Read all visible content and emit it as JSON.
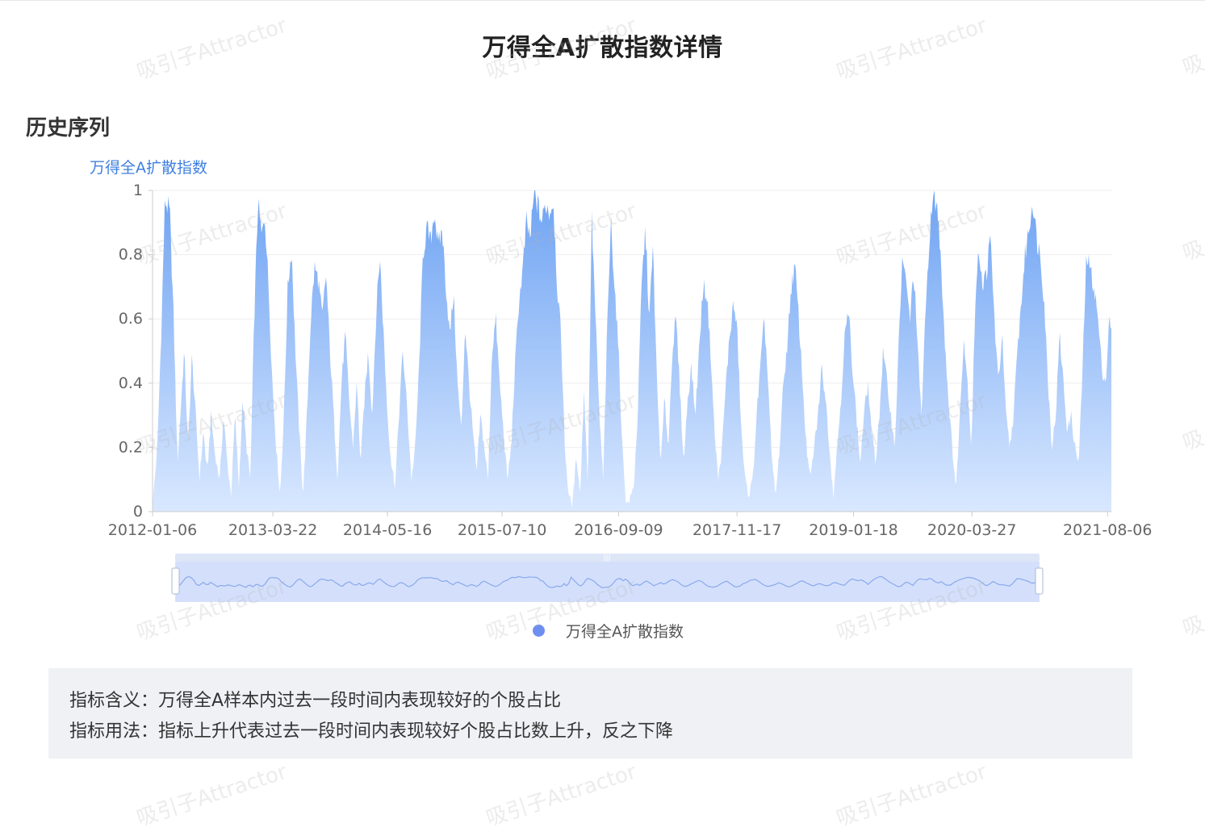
{
  "page": {
    "title": "万得全A扩散指数详情",
    "section_title": "历史序列",
    "watermark_text": "吸引子Attractor",
    "info": {
      "meaning_label": "指标含义：",
      "meaning_text": "万得全A样本内过去一段时间内表现较好的个股占比",
      "usage_label": "指标用法：",
      "usage_text": "指标上升代表过去一段时间内表现较好个股占比数上升，反之下降"
    }
  },
  "colors": {
    "accent": "#3f7fe0",
    "area_top": "#6ea3f3",
    "area_bottom": "#d9e8ff",
    "legend_dot": "#6e8ef0",
    "slider_fill": "#d4e0fb",
    "slider_handle_bar": "#dde6f7"
  },
  "chart_data": {
    "type": "area",
    "series_name": "万得全A扩散指数",
    "legend": [
      "万得全A扩散指数"
    ],
    "legend_position": "bottom-center",
    "x_start": "2012-01-06",
    "x_end": "2021-08-20",
    "x_tick_labels": [
      "2012-01-06",
      "2013-03-22",
      "2014-05-16",
      "2015-07-10",
      "2016-09-09",
      "2017-11-17",
      "2019-01-18",
      "2020-03-27",
      "2021-08-06"
    ],
    "y_ticks": [
      "0",
      "0.2",
      "0.4",
      "0.6",
      "0.8",
      "1"
    ],
    "ylim": [
      0,
      1
    ],
    "grid": true,
    "data_zoom_slider": true,
    "anchors": [
      [
        0.0,
        0.02
      ],
      [
        0.005,
        0.2
      ],
      [
        0.009,
        0.55
      ],
      [
        0.013,
        0.97
      ],
      [
        0.018,
        0.93
      ],
      [
        0.022,
        0.6
      ],
      [
        0.026,
        0.15
      ],
      [
        0.03,
        0.35
      ],
      [
        0.033,
        0.5
      ],
      [
        0.037,
        0.2
      ],
      [
        0.041,
        0.48
      ],
      [
        0.045,
        0.3
      ],
      [
        0.049,
        0.1
      ],
      [
        0.053,
        0.25
      ],
      [
        0.057,
        0.12
      ],
      [
        0.061,
        0.3
      ],
      [
        0.065,
        0.18
      ],
      [
        0.07,
        0.1
      ],
      [
        0.074,
        0.3
      ],
      [
        0.078,
        0.15
      ],
      [
        0.082,
        0.05
      ],
      [
        0.086,
        0.3
      ],
      [
        0.09,
        0.08
      ],
      [
        0.094,
        0.35
      ],
      [
        0.098,
        0.2
      ],
      [
        0.102,
        0.1
      ],
      [
        0.106,
        0.6
      ],
      [
        0.11,
        0.96
      ],
      [
        0.114,
        0.85
      ],
      [
        0.117,
        0.93
      ],
      [
        0.121,
        0.7
      ],
      [
        0.125,
        0.4
      ],
      [
        0.129,
        0.2
      ],
      [
        0.133,
        0.05
      ],
      [
        0.137,
        0.3
      ],
      [
        0.141,
        0.7
      ],
      [
        0.145,
        0.82
      ],
      [
        0.149,
        0.5
      ],
      [
        0.153,
        0.25
      ],
      [
        0.157,
        0.05
      ],
      [
        0.161,
        0.3
      ],
      [
        0.165,
        0.6
      ],
      [
        0.169,
        0.76
      ],
      [
        0.173,
        0.72
      ],
      [
        0.177,
        0.6
      ],
      [
        0.181,
        0.74
      ],
      [
        0.185,
        0.5
      ],
      [
        0.189,
        0.3
      ],
      [
        0.193,
        0.1
      ],
      [
        0.197,
        0.4
      ],
      [
        0.201,
        0.55
      ],
      [
        0.205,
        0.35
      ],
      [
        0.209,
        0.2
      ],
      [
        0.213,
        0.4
      ],
      [
        0.217,
        0.15
      ],
      [
        0.221,
        0.35
      ],
      [
        0.225,
        0.5
      ],
      [
        0.229,
        0.3
      ],
      [
        0.233,
        0.6
      ],
      [
        0.237,
        0.8
      ],
      [
        0.241,
        0.55
      ],
      [
        0.245,
        0.3
      ],
      [
        0.249,
        0.15
      ],
      [
        0.253,
        0.08
      ],
      [
        0.257,
        0.3
      ],
      [
        0.261,
        0.5
      ],
      [
        0.266,
        0.3
      ],
      [
        0.27,
        0.1
      ],
      [
        0.274,
        0.2
      ],
      [
        0.278,
        0.45
      ],
      [
        0.282,
        0.8
      ],
      [
        0.286,
        0.88
      ],
      [
        0.29,
        0.84
      ],
      [
        0.294,
        0.94
      ],
      [
        0.298,
        0.82
      ],
      [
        0.302,
        0.88
      ],
      [
        0.306,
        0.7
      ],
      [
        0.31,
        0.55
      ],
      [
        0.314,
        0.68
      ],
      [
        0.318,
        0.4
      ],
      [
        0.322,
        0.25
      ],
      [
        0.326,
        0.58
      ],
      [
        0.33,
        0.4
      ],
      [
        0.334,
        0.25
      ],
      [
        0.338,
        0.12
      ],
      [
        0.342,
        0.3
      ],
      [
        0.346,
        0.2
      ],
      [
        0.35,
        0.1
      ],
      [
        0.354,
        0.5
      ],
      [
        0.358,
        0.6
      ],
      [
        0.362,
        0.4
      ],
      [
        0.366,
        0.25
      ],
      [
        0.37,
        0.1
      ],
      [
        0.374,
        0.2
      ],
      [
        0.378,
        0.45
      ],
      [
        0.382,
        0.65
      ],
      [
        0.386,
        0.75
      ],
      [
        0.39,
        0.9
      ],
      [
        0.394,
        0.85
      ],
      [
        0.398,
        0.99
      ],
      [
        0.402,
        0.95
      ],
      [
        0.406,
        0.9
      ],
      [
        0.41,
        0.96
      ],
      [
        0.414,
        0.93
      ],
      [
        0.418,
        0.97
      ],
      [
        0.422,
        0.7
      ],
      [
        0.426,
        0.55
      ],
      [
        0.43,
        0.2
      ],
      [
        0.434,
        0.05
      ],
      [
        0.438,
        0.02
      ],
      [
        0.442,
        0.18
      ],
      [
        0.446,
        0.05
      ],
      [
        0.45,
        0.38
      ],
      [
        0.454,
        0.08
      ],
      [
        0.458,
        0.92
      ],
      [
        0.462,
        0.6
      ],
      [
        0.466,
        0.3
      ],
      [
        0.47,
        0.1
      ],
      [
        0.474,
        0.55
      ],
      [
        0.478,
        0.9
      ],
      [
        0.482,
        0.7
      ],
      [
        0.486,
        0.5
      ],
      [
        0.49,
        0.2
      ],
      [
        0.494,
        0.02
      ],
      [
        0.498,
        0.04
      ],
      [
        0.502,
        0.08
      ],
      [
        0.506,
        0.3
      ],
      [
        0.51,
        0.7
      ],
      [
        0.514,
        0.88
      ],
      [
        0.518,
        0.6
      ],
      [
        0.522,
        0.82
      ],
      [
        0.526,
        0.4
      ],
      [
        0.53,
        0.15
      ],
      [
        0.534,
        0.35
      ],
      [
        0.538,
        0.2
      ],
      [
        0.542,
        0.5
      ],
      [
        0.546,
        0.6
      ],
      [
        0.55,
        0.38
      ],
      [
        0.554,
        0.15
      ],
      [
        0.558,
        0.35
      ],
      [
        0.562,
        0.45
      ],
      [
        0.566,
        0.3
      ],
      [
        0.57,
        0.5
      ],
      [
        0.574,
        0.7
      ],
      [
        0.578,
        0.68
      ],
      [
        0.582,
        0.5
      ],
      [
        0.586,
        0.25
      ],
      [
        0.59,
        0.1
      ],
      [
        0.594,
        0.2
      ],
      [
        0.598,
        0.4
      ],
      [
        0.602,
        0.55
      ],
      [
        0.606,
        0.65
      ],
      [
        0.61,
        0.55
      ],
      [
        0.614,
        0.25
      ],
      [
        0.618,
        0.1
      ],
      [
        0.622,
        0.05
      ],
      [
        0.626,
        0.1
      ],
      [
        0.63,
        0.3
      ],
      [
        0.634,
        0.45
      ],
      [
        0.638,
        0.6
      ],
      [
        0.642,
        0.4
      ],
      [
        0.646,
        0.15
      ],
      [
        0.65,
        0.05
      ],
      [
        0.654,
        0.2
      ],
      [
        0.658,
        0.4
      ],
      [
        0.662,
        0.52
      ],
      [
        0.666,
        0.7
      ],
      [
        0.67,
        0.76
      ],
      [
        0.674,
        0.6
      ],
      [
        0.678,
        0.4
      ],
      [
        0.682,
        0.2
      ],
      [
        0.686,
        0.1
      ],
      [
        0.69,
        0.2
      ],
      [
        0.694,
        0.3
      ],
      [
        0.698,
        0.45
      ],
      [
        0.702,
        0.35
      ],
      [
        0.706,
        0.2
      ],
      [
        0.71,
        0.05
      ],
      [
        0.714,
        0.2
      ],
      [
        0.718,
        0.35
      ],
      [
        0.722,
        0.55
      ],
      [
        0.726,
        0.62
      ],
      [
        0.73,
        0.45
      ],
      [
        0.734,
        0.3
      ],
      [
        0.738,
        0.15
      ],
      [
        0.742,
        0.3
      ],
      [
        0.746,
        0.4
      ],
      [
        0.75,
        0.25
      ],
      [
        0.754,
        0.15
      ],
      [
        0.758,
        0.3
      ],
      [
        0.762,
        0.5
      ],
      [
        0.766,
        0.4
      ],
      [
        0.77,
        0.3
      ],
      [
        0.774,
        0.2
      ],
      [
        0.778,
        0.5
      ],
      [
        0.782,
        0.8
      ],
      [
        0.786,
        0.7
      ],
      [
        0.79,
        0.6
      ],
      [
        0.794,
        0.75
      ],
      [
        0.798,
        0.5
      ],
      [
        0.802,
        0.3
      ],
      [
        0.806,
        0.6
      ],
      [
        0.81,
        0.85
      ],
      [
        0.814,
        0.97
      ],
      [
        0.818,
        0.96
      ],
      [
        0.822,
        0.8
      ],
      [
        0.826,
        0.55
      ],
      [
        0.83,
        0.35
      ],
      [
        0.834,
        0.2
      ],
      [
        0.838,
        0.07
      ],
      [
        0.842,
        0.3
      ],
      [
        0.846,
        0.55
      ],
      [
        0.85,
        0.4
      ],
      [
        0.854,
        0.2
      ],
      [
        0.858,
        0.65
      ],
      [
        0.862,
        0.82
      ],
      [
        0.866,
        0.7
      ],
      [
        0.87,
        0.75
      ],
      [
        0.874,
        0.85
      ],
      [
        0.878,
        0.6
      ],
      [
        0.882,
        0.4
      ],
      [
        0.886,
        0.55
      ],
      [
        0.89,
        0.3
      ],
      [
        0.894,
        0.2
      ],
      [
        0.898,
        0.3
      ],
      [
        0.902,
        0.5
      ],
      [
        0.906,
        0.65
      ],
      [
        0.91,
        0.8
      ],
      [
        0.914,
        0.88
      ],
      [
        0.918,
        0.97
      ],
      [
        0.922,
        0.85
      ],
      [
        0.926,
        0.8
      ],
      [
        0.93,
        0.65
      ],
      [
        0.934,
        0.4
      ],
      [
        0.938,
        0.2
      ],
      [
        0.942,
        0.3
      ],
      [
        0.946,
        0.55
      ],
      [
        0.95,
        0.4
      ],
      [
        0.954,
        0.25
      ],
      [
        0.958,
        0.3
      ],
      [
        0.962,
        0.2
      ],
      [
        0.966,
        0.15
      ],
      [
        0.97,
        0.45
      ],
      [
        0.974,
        0.8
      ],
      [
        0.978,
        0.75
      ],
      [
        0.982,
        0.7
      ],
      [
        0.986,
        0.6
      ],
      [
        0.99,
        0.45
      ],
      [
        0.994,
        0.4
      ],
      [
        0.998,
        0.6
      ],
      [
        1.0,
        0.55
      ]
    ]
  }
}
